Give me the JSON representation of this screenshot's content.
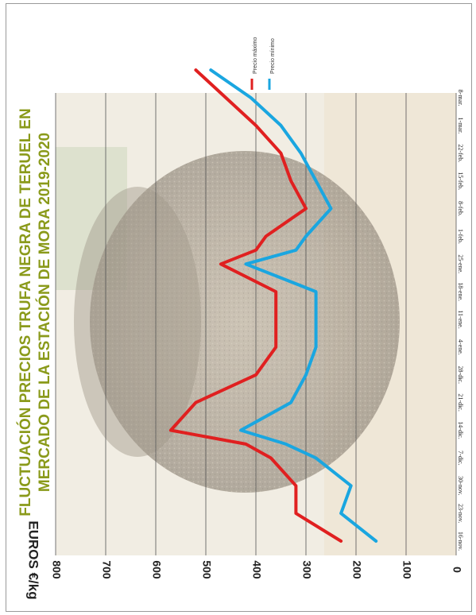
{
  "chart_data": {
    "type": "line",
    "title": "FLUCTUACIÓN PRECIOS TRUFA NEGRA DE TERUEL EN MERCADO DE LA ESTACIÓN DE MORA 2019-2020",
    "title_lines": [
      "FLUCTUACIÓN  PRECIOS TRUFA  NEGRA DE TERUEL  EN",
      "MERCADO DE LA ESTACIÓN DE MORA 2019-2020"
    ],
    "ylabel": "EUROS €/kg",
    "xlabel": "",
    "ylim": [
      0,
      800
    ],
    "yticks": [
      0,
      100,
      200,
      300,
      400,
      500,
      600,
      700,
      800
    ],
    "grid": true,
    "legend_position": "top-right",
    "orientation": "rotated-90-clockwise",
    "categories": [
      "16-nov.",
      "23-nov.",
      "30-nov.",
      "7-dic.",
      "14-dic.",
      "21-dic.",
      "28-dic.",
      "4-ene.",
      "11-ene.",
      "18-ene.",
      "25-ene.",
      "1-feb.",
      "8-feb.",
      "15-feb.",
      "22-feb.",
      "1-mar.",
      "8-mar."
    ],
    "x": [
      0,
      1,
      2,
      3,
      3.5,
      4,
      5,
      6,
      6.5,
      7,
      8,
      9,
      10,
      10.5,
      11,
      12,
      13,
      14,
      15,
      16,
      17
    ],
    "series": [
      {
        "name": "Precio máximo",
        "color": "#e02020",
        "values": [
          230,
          320,
          320,
          370,
          420,
          570,
          520,
          400,
          380,
          360,
          360,
          360,
          470,
          400,
          380,
          300,
          330,
          350,
          400,
          460,
          520
        ]
      },
      {
        "name": "Precio mínimo",
        "color": "#1aa6e0",
        "values": [
          160,
          230,
          210,
          280,
          340,
          430,
          330,
          300,
          290,
          280,
          280,
          280,
          420,
          320,
          300,
          250,
          280,
          310,
          350,
          410,
          490
        ]
      }
    ]
  }
}
